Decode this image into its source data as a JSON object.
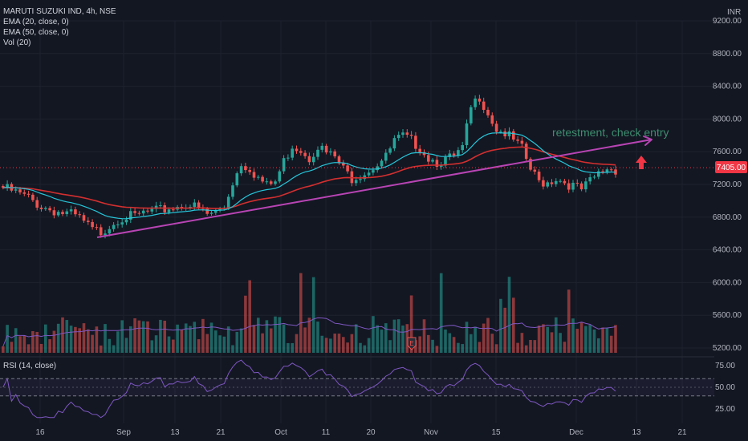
{
  "legend": {
    "symbol": "MARUTI SUZUKI IND, 4h, NSE",
    "ema20": "EMA (20, close, 0)",
    "ema50": "EMA (50, close, 0)",
    "vol": "Vol (20)"
  },
  "rsi_label": "RSI (14, close)",
  "currency": "INR",
  "colors": {
    "background": "#131722",
    "up": "#26a69a",
    "down": "#ef5350",
    "ema20": "#26c6da",
    "ema50": "#d32f2f",
    "trendline": "#b844b4",
    "annotation": "#3e8d6f",
    "arrow": "#f23645",
    "rsi_line": "#7e57c2",
    "vol_ma": "#7e57c2",
    "grid": "#1e222d",
    "price_tag": "#f23645"
  },
  "chart_data": {
    "type": "candlestick",
    "title": "MARUTI SUZUKI IND, 4h, NSE",
    "price_axis": {
      "unit": "INR",
      "ticks": [
        9200,
        8800,
        8400,
        8000,
        7600,
        7200,
        6800,
        6400,
        6000,
        5600,
        5200
      ],
      "tick_labels": [
        "9200.00",
        "8800.00",
        "8400.00",
        "8000.00",
        "7600.00",
        "7200.00",
        "6800.00",
        "6400.00",
        "6000.00",
        "5600.00",
        "5200.00"
      ]
    },
    "time_axis": {
      "labels": [
        "16",
        "Sep",
        "13",
        "21",
        "Oct",
        "11",
        "20",
        "Nov",
        "15",
        "Dec",
        "13",
        "21"
      ]
    },
    "current_price": {
      "value": 7405,
      "label": "7405.00"
    },
    "trendline": {
      "from": {
        "date": "Aug 27",
        "price": 6550
      },
      "to": {
        "date": "Dec 15",
        "price": 7750
      }
    },
    "annotation": {
      "text": "retestment, check entry"
    },
    "rsi": {
      "label": "RSI (14, close)",
      "ticks": [
        75,
        50,
        25
      ],
      "tick_labels": [
        "75.00",
        "50.00",
        "25.00"
      ],
      "upper_band": 60,
      "lower_band": 40
    },
    "volume": {
      "label": "Vol (20)"
    },
    "close_series_points": [
      [
        7180,
        0
      ],
      [
        7120,
        3
      ],
      [
        7050,
        6
      ],
      [
        6950,
        9
      ],
      [
        6900,
        12
      ],
      [
        6870,
        14
      ],
      [
        6850,
        16
      ],
      [
        6800,
        18
      ],
      [
        6660,
        21
      ],
      [
        6640,
        23
      ],
      [
        6720,
        25
      ],
      [
        6800,
        27
      ],
      [
        6830,
        29
      ],
      [
        6820,
        31
      ],
      [
        6870,
        33
      ],
      [
        6880,
        35
      ],
      [
        6900,
        37
      ],
      [
        6930,
        39
      ],
      [
        6950,
        41
      ],
      [
        6990,
        43
      ],
      [
        6920,
        46
      ],
      [
        6850,
        48
      ],
      [
        6880,
        50
      ],
      [
        6950,
        52
      ],
      [
        7250,
        54
      ],
      [
        7480,
        56
      ],
      [
        7420,
        58
      ],
      [
        7300,
        60
      ],
      [
        7200,
        62
      ],
      [
        7250,
        64
      ],
      [
        7500,
        66
      ],
      [
        7700,
        68
      ],
      [
        7650,
        70
      ],
      [
        7550,
        72
      ],
      [
        7700,
        74
      ],
      [
        7600,
        76
      ],
      [
        7550,
        78
      ],
      [
        7400,
        80
      ],
      [
        7300,
        82
      ],
      [
        7350,
        84
      ],
      [
        7400,
        86
      ],
      [
        7480,
        88
      ],
      [
        7550,
        90
      ],
      [
        7750,
        92
      ],
      [
        7800,
        94
      ],
      [
        7750,
        96
      ],
      [
        7680,
        98
      ],
      [
        7550,
        100
      ],
      [
        7500,
        102
      ],
      [
        7520,
        104
      ],
      [
        7550,
        106
      ],
      [
        7650,
        108
      ],
      [
        8150,
        110
      ],
      [
        8300,
        112
      ],
      [
        8100,
        114
      ],
      [
        7900,
        116
      ],
      [
        7850,
        118
      ],
      [
        7750,
        120
      ],
      [
        7650,
        122
      ],
      [
        7400,
        124
      ],
      [
        7250,
        126
      ],
      [
        7250,
        128
      ],
      [
        7300,
        130
      ],
      [
        7250,
        132
      ],
      [
        7200,
        134
      ],
      [
        7150,
        136
      ],
      [
        7250,
        138
      ],
      [
        7350,
        140
      ],
      [
        7420,
        142
      ],
      [
        7405,
        144
      ]
    ]
  }
}
